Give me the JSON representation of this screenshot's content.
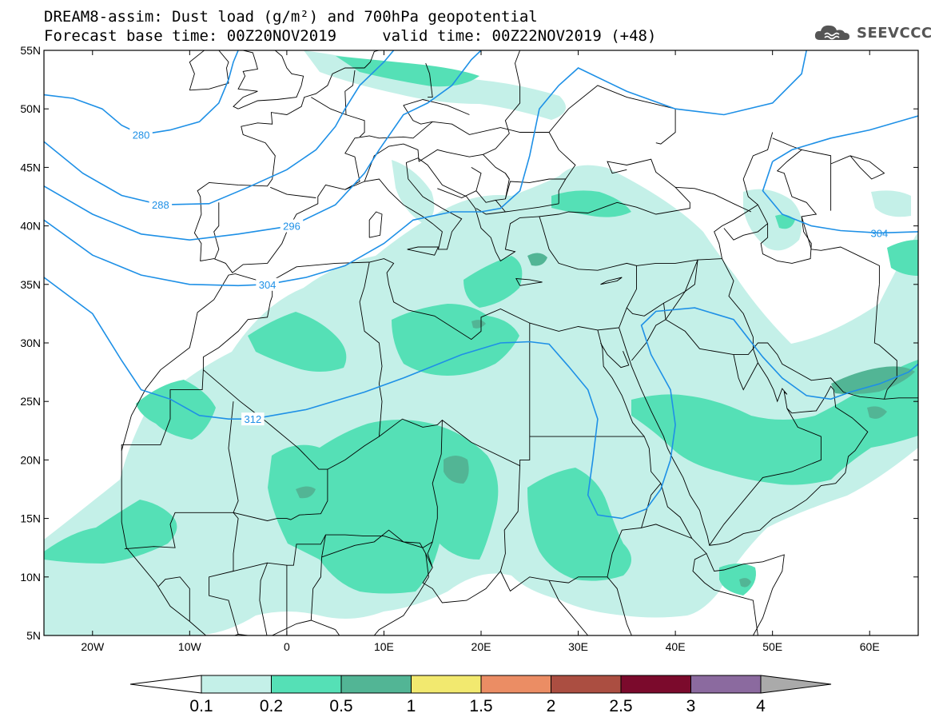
{
  "header": {
    "title_line1": "DREAM8-assim: Dust load (g/m²) and 700hPa geopotential",
    "title_line2": "Forecast base time: 00Z20NOV2019     valid time: 00Z22NOV2019 (+48)",
    "logo_text": "SEEVCCC",
    "logo_icon": "cloud-logo-icon"
  },
  "map": {
    "lon_range": [
      -25,
      65
    ],
    "lat_range": [
      5,
      55
    ],
    "lat_ticks": [
      {
        "value": 55,
        "label": "55N"
      },
      {
        "value": 50,
        "label": "50N"
      },
      {
        "value": 45,
        "label": "45N"
      },
      {
        "value": 40,
        "label": "40N"
      },
      {
        "value": 35,
        "label": "35N"
      },
      {
        "value": 30,
        "label": "30N"
      },
      {
        "value": 25,
        "label": "25N"
      },
      {
        "value": 20,
        "label": "20N"
      },
      {
        "value": 15,
        "label": "15N"
      },
      {
        "value": 10,
        "label": "10N"
      },
      {
        "value": 5,
        "label": "5N"
      }
    ],
    "lon_ticks": [
      {
        "value": -20,
        "label": "20W"
      },
      {
        "value": -10,
        "label": "10W"
      },
      {
        "value": 0,
        "label": "0"
      },
      {
        "value": 10,
        "label": "10E"
      },
      {
        "value": 20,
        "label": "20E"
      },
      {
        "value": 30,
        "label": "30E"
      },
      {
        "value": 40,
        "label": "40E"
      },
      {
        "value": 50,
        "label": "50E"
      },
      {
        "value": 60,
        "label": "60E"
      }
    ],
    "contour_color": "#1e90e6",
    "contours": [
      {
        "label": "280",
        "label_lon": -15,
        "label_lat": 47.8,
        "points": [
          [
            -25,
            51.2
          ],
          [
            -22,
            50.9
          ],
          [
            -19,
            50.0
          ],
          [
            -17,
            48.6
          ],
          [
            -15,
            47.8
          ],
          [
            -12,
            48.2
          ],
          [
            -9,
            48.9
          ],
          [
            -7,
            50.5
          ],
          [
            -6,
            52.5
          ],
          [
            -5.5,
            54.0
          ],
          [
            -5,
            55
          ]
        ]
      },
      {
        "label": "288",
        "label_lon": -13,
        "label_lat": 41.8,
        "points": [
          [
            -25,
            47.2
          ],
          [
            -21,
            44.5
          ],
          [
            -17,
            42.6
          ],
          [
            -13,
            41.8
          ],
          [
            -8,
            41.9
          ],
          [
            -4,
            43.3
          ],
          [
            0,
            44.8
          ],
          [
            3,
            46.5
          ],
          [
            5,
            48.5
          ],
          [
            6,
            50
          ],
          [
            7.5,
            52
          ],
          [
            10,
            54
          ],
          [
            11,
            55
          ]
        ]
      },
      {
        "label": "296",
        "label_lon": 0.5,
        "label_lat": 40.0,
        "points": [
          [
            -25,
            43.4
          ],
          [
            -20,
            41.0
          ],
          [
            -15,
            39.3
          ],
          [
            -10,
            38.8
          ],
          [
            -5,
            39.3
          ],
          [
            0.5,
            40.0
          ],
          [
            5,
            41.8
          ],
          [
            8,
            44.5
          ],
          [
            9.5,
            46.5
          ],
          [
            12,
            49.5
          ],
          [
            14.5,
            50.5
          ],
          [
            17,
            52
          ],
          [
            19,
            54.2
          ],
          [
            20,
            55
          ]
        ]
      },
      {
        "label": "304",
        "label_lon": -2,
        "label_lat": 35.0,
        "points": [
          [
            -25,
            40.5
          ],
          [
            -20,
            37.5
          ],
          [
            -15,
            35.8
          ],
          [
            -10,
            35.0
          ],
          [
            -5,
            34.9
          ],
          [
            -2,
            35.0
          ],
          [
            2,
            35.6
          ],
          [
            6,
            36.6
          ],
          [
            10,
            38.5
          ],
          [
            13,
            40.5
          ],
          [
            17,
            41.2
          ],
          [
            20,
            41.2
          ],
          [
            22,
            41.5
          ],
          [
            24,
            43
          ],
          [
            25,
            46
          ],
          [
            26,
            50
          ],
          [
            28,
            52
          ],
          [
            30,
            53.5
          ],
          [
            35,
            51.5
          ],
          [
            40,
            50
          ],
          [
            45,
            49.5
          ],
          [
            50,
            50.5
          ],
          [
            53,
            53
          ],
          [
            53.5,
            55
          ]
        ]
      },
      {
        "label": "304",
        "label_lon": 61,
        "label_lat": 39.4,
        "points": [
          [
            50,
            45.5
          ],
          [
            52,
            46.5
          ],
          [
            56,
            47.5
          ],
          [
            60,
            48.2
          ],
          [
            65,
            49.4
          ]
        ]
      },
      {
        "label": "",
        "label_lon": 0,
        "label_lat": 0,
        "points": [
          [
            65,
            39.5
          ],
          [
            61,
            39.4
          ],
          [
            57,
            39.6
          ],
          [
            54,
            40
          ],
          [
            51,
            41
          ],
          [
            49,
            43
          ],
          [
            50,
            45.5
          ]
        ]
      },
      {
        "label": "312",
        "label_lon": -3.5,
        "label_lat": 23.5,
        "points": [
          [
            -25,
            35.6
          ],
          [
            -20,
            32.5
          ],
          [
            -17,
            28.5
          ],
          [
            -15,
            26
          ],
          [
            -12,
            25.2
          ],
          [
            -9,
            23.8
          ],
          [
            -6,
            23.5
          ],
          [
            -3.5,
            23.5
          ],
          [
            2,
            24.3
          ],
          [
            8,
            25.8
          ],
          [
            12,
            27
          ],
          [
            18,
            29
          ],
          [
            22,
            30
          ],
          [
            25,
            30.1
          ],
          [
            27,
            29.9
          ],
          [
            29,
            28
          ],
          [
            31,
            26
          ],
          [
            32,
            23.5
          ],
          [
            31.5,
            20
          ],
          [
            31,
            17
          ],
          [
            32,
            15.3
          ],
          [
            34.5,
            15
          ],
          [
            37,
            15.8
          ],
          [
            38.5,
            17.5
          ],
          [
            39.5,
            20
          ],
          [
            40,
            23
          ],
          [
            39.5,
            26
          ],
          [
            37.5,
            29
          ],
          [
            36.5,
            31.5
          ],
          [
            38,
            32.7
          ],
          [
            42,
            33
          ],
          [
            46,
            32
          ],
          [
            49,
            28.8
          ],
          [
            51,
            27
          ],
          [
            53.5,
            25.5
          ],
          [
            56,
            25.2
          ],
          [
            58,
            25.8
          ],
          [
            61,
            26.5
          ],
          [
            64,
            27.5
          ],
          [
            65,
            28.2
          ]
        ]
      }
    ],
    "shading_colors": [
      "#c4f0e8",
      "#55e0b6",
      "#52b595"
    ]
  },
  "legend": {
    "ticks": [
      "0.1",
      "0.2",
      "0.5",
      "1",
      "1.5",
      "2",
      "2.5",
      "3",
      "4"
    ],
    "colors": [
      "#c4f0e8",
      "#55e0b6",
      "#52b595",
      "#f2e96f",
      "#eb8d64",
      "#ab4e41",
      "#7b0a2c",
      "#8b6a9f"
    ],
    "under_color": "#ffffff",
    "over_color": "#aaaaaa"
  }
}
